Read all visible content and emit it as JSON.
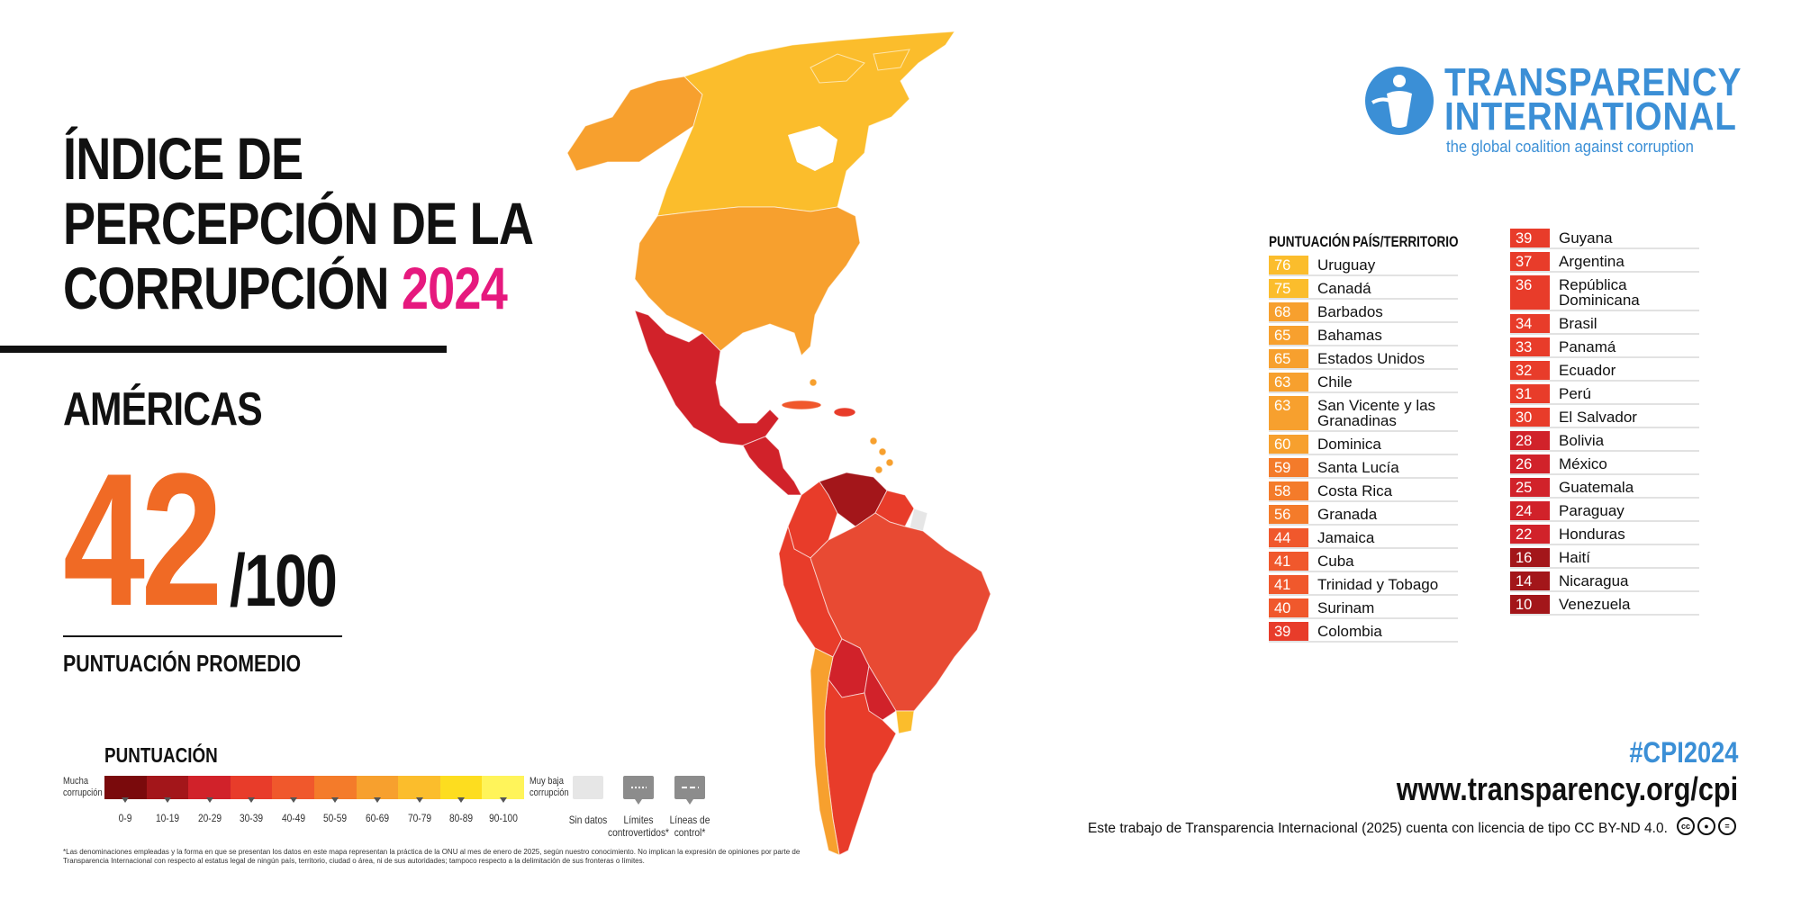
{
  "title": {
    "line1": "ÍNDICE DE",
    "line2": "PERCEPCIÓN DE LA",
    "line3": "CORRUPCIÓN",
    "year": "2024"
  },
  "region": "AMÉRICAS",
  "average": {
    "score": "42",
    "denominator": "/100",
    "label": "PUNTUACIÓN PROMEDIO"
  },
  "legend": {
    "title": "PUNTUACIÓN",
    "left_end": [
      "Mucha",
      "corrupción"
    ],
    "right_end": [
      "Muy baja",
      "corrupción"
    ],
    "bins": [
      "0-9",
      "10-19",
      "20-29",
      "30-39",
      "40-49",
      "50-59",
      "60-69",
      "70-79",
      "80-89",
      "90-100"
    ],
    "bin_colors": [
      "#7a0a0c",
      "#a3161a",
      "#d1222a",
      "#e83c2a",
      "#f0582c",
      "#f47b2a",
      "#f7a02e",
      "#fbbd2c",
      "#fddd1f",
      "#fff45a"
    ],
    "no_data": "Sin datos",
    "disputed": [
      "Límites",
      "controvertidos*"
    ],
    "control": [
      "Líneas de",
      "control*"
    ]
  },
  "footnote": "*Las denominaciones empleadas y la forma en que se presentan los datos en este mapa representan la práctica de la ONU al mes de enero de 2025, según nuestro conocimiento. No implican la expresión de opiniones por parte de Transparencia Internacional con respecto al estatus legal de ningún país, territorio, ciudad o área, ni de sus autoridades; tampoco respecto a la delimitación de sus fronteras o límites.",
  "logo": {
    "word1": "TRANSPARENCY",
    "word2": "INTERNATIONAL",
    "tagline": "the global coalition against corruption",
    "color": "#3b8fd6"
  },
  "table": {
    "header_score": "PUNTUACIÓN",
    "header_country": "PAÍS/TERRITORIO",
    "column1": [
      {
        "score": "76",
        "country": "Uruguay",
        "color": "#fbbd2c"
      },
      {
        "score": "75",
        "country": "Canadá",
        "color": "#fbbd2c"
      },
      {
        "score": "68",
        "country": "Barbados",
        "color": "#f7a02e"
      },
      {
        "score": "65",
        "country": "Bahamas",
        "color": "#f7a02e"
      },
      {
        "score": "65",
        "country": "Estados Unidos",
        "color": "#f7a02e"
      },
      {
        "score": "63",
        "country": "Chile",
        "color": "#f7a02e"
      },
      {
        "score": "63",
        "country": "San Vicente y las Granadinas",
        "color": "#f7a02e"
      },
      {
        "score": "60",
        "country": "Dominica",
        "color": "#f7a02e"
      },
      {
        "score": "59",
        "country": "Santa Lucía",
        "color": "#f47b2a"
      },
      {
        "score": "58",
        "country": "Costa Rica",
        "color": "#f47b2a"
      },
      {
        "score": "56",
        "country": "Granada",
        "color": "#f47b2a"
      },
      {
        "score": "44",
        "country": "Jamaica",
        "color": "#f0582c"
      },
      {
        "score": "41",
        "country": "Cuba",
        "color": "#f0582c"
      },
      {
        "score": "41",
        "country": "Trinidad y Tobago",
        "color": "#f0582c"
      },
      {
        "score": "40",
        "country": "Surinam",
        "color": "#f0582c"
      },
      {
        "score": "39",
        "country": "Colombia",
        "color": "#e83c2a"
      }
    ],
    "column2": [
      {
        "score": "39",
        "country": "Guyana",
        "color": "#e83c2a"
      },
      {
        "score": "37",
        "country": "Argentina",
        "color": "#e83c2a"
      },
      {
        "score": "36",
        "country": "República Dominicana",
        "color": "#e83c2a"
      },
      {
        "score": "34",
        "country": "Brasil",
        "color": "#e83c2a"
      },
      {
        "score": "33",
        "country": "Panamá",
        "color": "#e83c2a"
      },
      {
        "score": "32",
        "country": "Ecuador",
        "color": "#e83c2a"
      },
      {
        "score": "31",
        "country": "Perú",
        "color": "#e83c2a"
      },
      {
        "score": "30",
        "country": "El Salvador",
        "color": "#e83c2a"
      },
      {
        "score": "28",
        "country": "Bolivia",
        "color": "#d1222a"
      },
      {
        "score": "26",
        "country": "México",
        "color": "#d1222a"
      },
      {
        "score": "25",
        "country": "Guatemala",
        "color": "#d1222a"
      },
      {
        "score": "24",
        "country": "Paraguay",
        "color": "#d1222a"
      },
      {
        "score": "22",
        "country": "Honduras",
        "color": "#d1222a"
      },
      {
        "score": "16",
        "country": "Haití",
        "color": "#a3161a"
      },
      {
        "score": "14",
        "country": "Nicaragua",
        "color": "#a3161a"
      },
      {
        "score": "10",
        "country": "Venezuela",
        "color": "#a3161a"
      }
    ]
  },
  "hashtag": "#CPI2024",
  "url": "www.transparency.org/cpi",
  "license": "Este trabajo de Transparencia Internacional (2025) cuenta con licencia de tipo CC BY-ND 4.0.",
  "map_regions": [
    {
      "name": "canada",
      "color": "#fbbd2c"
    },
    {
      "name": "alaska",
      "color": "#f7a02e"
    },
    {
      "name": "greenland",
      "color": "#ffffff"
    },
    {
      "name": "usa",
      "color": "#f7a02e"
    },
    {
      "name": "mexico",
      "color": "#d1222a"
    },
    {
      "name": "central-america",
      "color": "#d1222a"
    },
    {
      "name": "venezuela",
      "color": "#a3161a"
    },
    {
      "name": "colombia",
      "color": "#e83c2a"
    },
    {
      "name": "guyana-suriname",
      "color": "#e83c2a"
    },
    {
      "name": "french-guiana",
      "color": "#e6e6e6"
    },
    {
      "name": "ecuador-peru",
      "color": "#e83c2a"
    },
    {
      "name": "brazil",
      "color": "#e84a33"
    },
    {
      "name": "bolivia",
      "color": "#d1222a"
    },
    {
      "name": "paraguay",
      "color": "#d1222a"
    },
    {
      "name": "argentina",
      "color": "#e83c2a"
    },
    {
      "name": "chile",
      "color": "#f7a02e"
    },
    {
      "name": "uruguay",
      "color": "#fbbd2c"
    }
  ]
}
